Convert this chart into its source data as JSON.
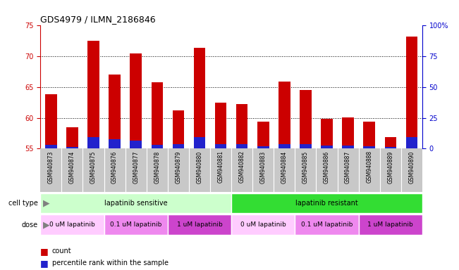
{
  "title": "GDS4979 / ILMN_2186846",
  "samples": [
    "GSM940873",
    "GSM940874",
    "GSM940875",
    "GSM940876",
    "GSM940877",
    "GSM940878",
    "GSM940879",
    "GSM940880",
    "GSM940881",
    "GSM940882",
    "GSM940883",
    "GSM940884",
    "GSM940885",
    "GSM940886",
    "GSM940887",
    "GSM940888",
    "GSM940889",
    "GSM940890"
  ],
  "count_values": [
    63.8,
    58.5,
    72.5,
    67.0,
    70.5,
    65.8,
    61.2,
    71.4,
    62.5,
    62.2,
    59.4,
    65.9,
    64.5,
    59.8,
    60.1,
    59.4,
    56.8,
    73.2
  ],
  "percentile_values": [
    3.0,
    1.5,
    9.0,
    7.5,
    6.5,
    3.0,
    3.5,
    9.0,
    3.5,
    3.5,
    2.0,
    3.5,
    3.5,
    2.5,
    2.5,
    2.0,
    1.5,
    9.0
  ],
  "ylim_left": [
    55,
    75
  ],
  "ylim_right": [
    0,
    100
  ],
  "yticks_left": [
    55,
    60,
    65,
    70,
    75
  ],
  "yticks_right": [
    0,
    25,
    50,
    75,
    100
  ],
  "bar_color_red": "#cc0000",
  "bar_color_blue": "#2222cc",
  "bar_width": 0.55,
  "cell_type_groups": [
    {
      "label": "lapatinib sensitive",
      "start": 0,
      "end": 9,
      "color": "#ccffcc"
    },
    {
      "label": "lapatinib resistant",
      "start": 9,
      "end": 18,
      "color": "#33dd33"
    }
  ],
  "dose_groups": [
    {
      "label": "0 uM lapatinib",
      "start": 0,
      "end": 3,
      "color": "#ffccff"
    },
    {
      "label": "0.1 uM lapatinib",
      "start": 3,
      "end": 6,
      "color": "#ee88ee"
    },
    {
      "label": "1 uM lapatinib",
      "start": 6,
      "end": 9,
      "color": "#cc44cc"
    },
    {
      "label": "0 uM lapatinib",
      "start": 9,
      "end": 12,
      "color": "#ffccff"
    },
    {
      "label": "0.1 uM lapatinib",
      "start": 12,
      "end": 15,
      "color": "#ee88ee"
    },
    {
      "label": "1 uM lapatinib",
      "start": 15,
      "end": 18,
      "color": "#cc44cc"
    }
  ],
  "cell_row_label": "cell type",
  "dose_row_label": "dose",
  "legend_count_label": "count",
  "legend_percentile_label": "percentile rank within the sample",
  "left_axis_color": "#cc0000",
  "right_axis_color": "#0000cc",
  "tick_area_color": "#c8c8c8",
  "grid_lines": [
    60,
    65,
    70
  ],
  "title_fontsize": 9,
  "label_fontsize": 7,
  "tick_fontsize": 7,
  "sample_fontsize": 5.5
}
